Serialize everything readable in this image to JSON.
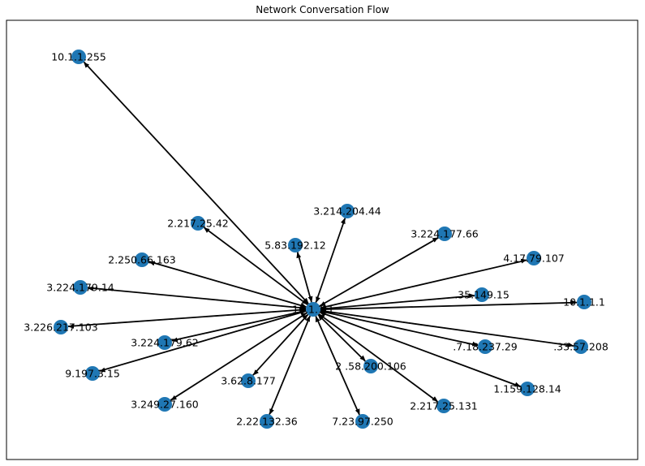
{
  "title": "Network Conversation Flow",
  "colors": {
    "node": "#1f77b4",
    "edge": "#000000",
    "frame": "#000000",
    "background": "#ffffff"
  },
  "hub": {
    "id": "hub",
    "label": "10.1.1.1"
  },
  "nodes": [
    {
      "id": "n1",
      "label": "10.1.1.255"
    },
    {
      "id": "n2",
      "label": "3.214.204.44"
    },
    {
      "id": "n3",
      "label": "2.217.25.42"
    },
    {
      "id": "n4",
      "label": "3.224.177.66"
    },
    {
      "id": "n5",
      "label": "5.83.192.12"
    },
    {
      "id": "n6",
      "label": "2.250.66.163"
    },
    {
      "id": "n7",
      "label": "4.17.79.107"
    },
    {
      "id": "n8",
      "label": "3.224.179.14"
    },
    {
      "id": "n9",
      "label": ".35.149.15"
    },
    {
      "id": "n10",
      "label": "10.1.1.1"
    },
    {
      "id": "n11",
      "label": "3.226.217.103"
    },
    {
      "id": "n12",
      "label": "3.224.179.62"
    },
    {
      "id": "n13",
      "label": ".7.18.237.29"
    },
    {
      "id": "n14",
      "label": ".33.57.208"
    },
    {
      "id": "n15",
      "label": "2 .58.200.106"
    },
    {
      "id": "n16",
      "label": "9.197.3.15"
    },
    {
      "id": "n17",
      "label": "3.62.8.177"
    },
    {
      "id": "n18",
      "label": "1.159.128.14"
    },
    {
      "id": "n19",
      "label": "3.249.27.160"
    },
    {
      "id": "n20",
      "label": "2.217.25.131"
    },
    {
      "id": "n21",
      "label": "2.22.132.36"
    },
    {
      "id": "n22",
      "label": "7.23.97.250"
    }
  ]
}
